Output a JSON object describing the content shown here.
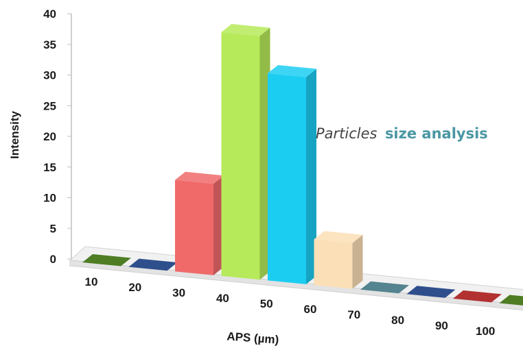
{
  "chart_data": {
    "type": "bar",
    "categories": [
      "10",
      "20",
      "30",
      "40",
      "50",
      "60",
      "70",
      "80",
      "90",
      "100"
    ],
    "values": [
      0,
      0,
      15,
      40,
      34,
      7.5,
      0,
      0,
      0,
      0
    ],
    "colors": [
      "#4e7d24",
      "#2f4f8c",
      "#f06a6a",
      "#b7ea5a",
      "#1ccdf2",
      "#fbdfb6",
      "#54848f",
      "#2f4f8c",
      "#b23232",
      "#4e7d24"
    ],
    "ylabel": "Intensity",
    "xlabel": "APS (µm)",
    "ylim": [
      0,
      40
    ],
    "yticks": [
      0,
      5,
      10,
      15,
      20,
      25,
      30,
      35,
      40
    ],
    "annotation": {
      "part1": "Particles",
      "part2": "size analysis"
    },
    "style": "3d-perspective",
    "grid": false,
    "legend": "none"
  }
}
